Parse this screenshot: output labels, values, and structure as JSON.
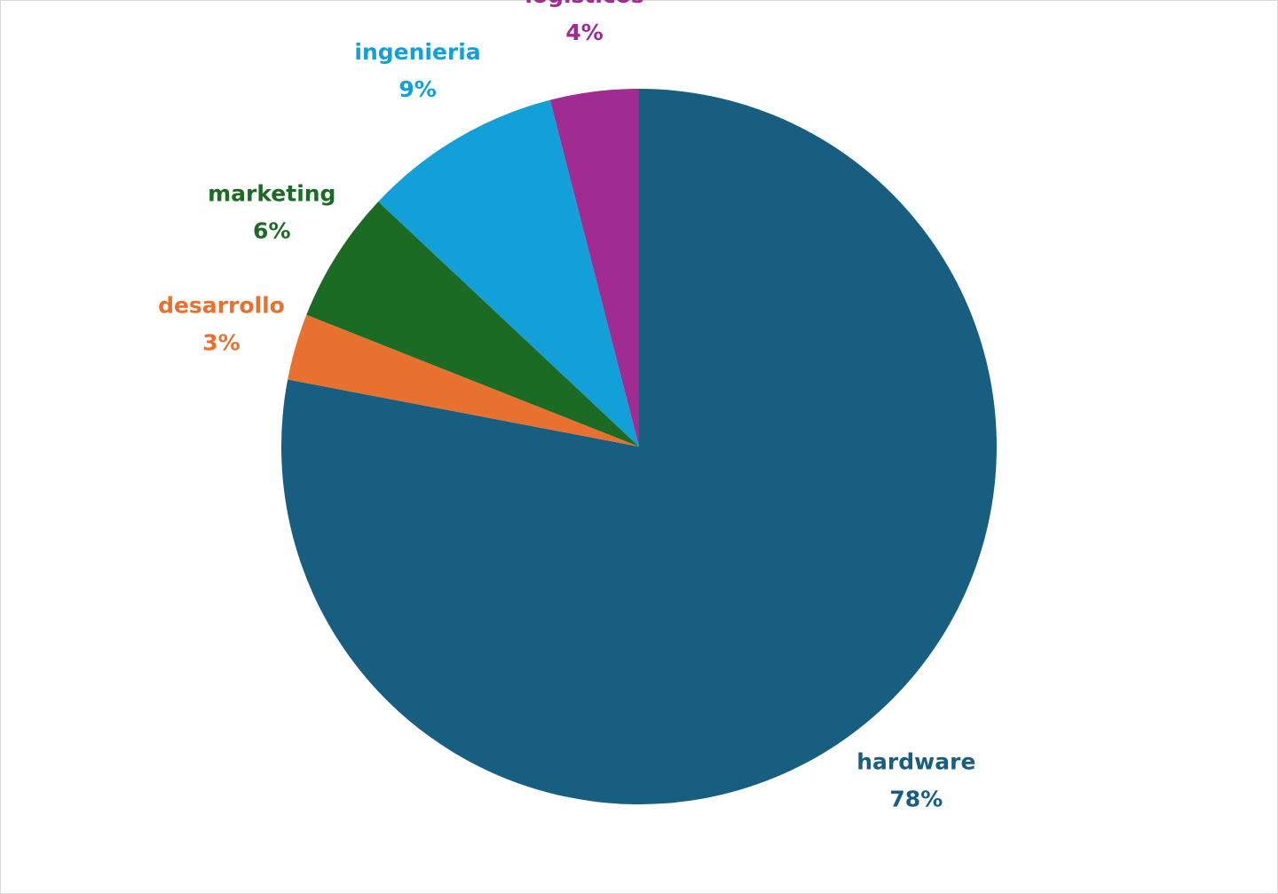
{
  "chart_data": {
    "type": "pie",
    "categories": [
      "hardware",
      "desarrollo",
      "marketing",
      "ingenieria",
      "logisticos"
    ],
    "values": [
      78,
      3,
      6,
      9,
      4
    ],
    "value_labels": [
      "78%",
      "3%",
      "6%",
      "9%",
      "4%"
    ],
    "colors": [
      "#175e80",
      "#e87130",
      "#1c6b24",
      "#139fd8",
      "#a02b93"
    ]
  }
}
